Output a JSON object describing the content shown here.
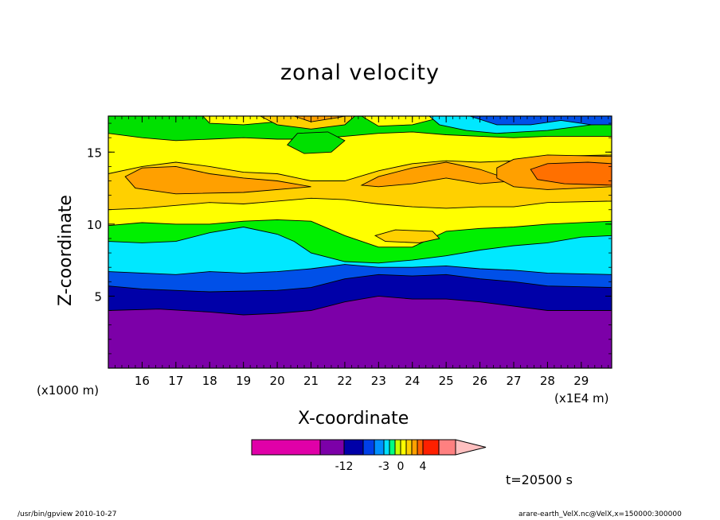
{
  "chart_data": {
    "type": "heatmap",
    "title": "zonal velocity",
    "xlabel": "X-coordinate",
    "ylabel": "Z-coordinate",
    "x_unit": "(x1E4 m)",
    "y_unit": "(x1000 m)",
    "x_ticks": [
      16,
      17,
      18,
      19,
      20,
      21,
      22,
      23,
      24,
      25,
      26,
      27,
      28,
      29
    ],
    "y_ticks": [
      5,
      10,
      15
    ],
    "xlim": [
      15.0,
      29.9
    ],
    "ylim": [
      0,
      17.5
    ],
    "colorbar_tick_labels": [
      {
        "label": "-12",
        "value": -12
      },
      {
        "label": "-3",
        "value": -3
      },
      {
        "label": "0",
        "value": 0
      },
      {
        "label": "4",
        "value": 4
      }
    ],
    "colorbar_colors": [
      "#e000a8",
      "#7c00a8",
      "#0000a8",
      "#0040e8",
      "#0090ff",
      "#00e0ff",
      "#00ff80",
      "#c8ff00",
      "#ffff00",
      "#ffd000",
      "#ffa000",
      "#ff6000",
      "#ff2000",
      "#ff8080",
      "#ffc0c0"
    ],
    "bands": [
      {
        "color": "#7c00a8",
        "upper": [
          [
            15.0,
            4.0
          ],
          [
            16.5,
            4.1
          ],
          [
            18,
            3.9
          ],
          [
            19,
            3.7
          ],
          [
            20,
            3.8
          ],
          [
            21,
            4.0
          ],
          [
            22,
            4.6
          ],
          [
            23,
            5.0
          ],
          [
            24,
            4.8
          ],
          [
            25,
            4.8
          ],
          [
            26,
            4.6
          ],
          [
            27,
            4.3
          ],
          [
            28,
            4.0
          ],
          [
            29.9,
            4.0
          ]
        ]
      },
      {
        "color": "#0000a8",
        "upper": [
          [
            15.0,
            5.7
          ],
          [
            16,
            5.5
          ],
          [
            18,
            5.3
          ],
          [
            20,
            5.4
          ],
          [
            21,
            5.6
          ],
          [
            22,
            6.2
          ],
          [
            23,
            6.5
          ],
          [
            24,
            6.4
          ],
          [
            25,
            6.5
          ],
          [
            26,
            6.2
          ],
          [
            27,
            6.0
          ],
          [
            28,
            5.7
          ],
          [
            29.9,
            5.6
          ]
        ]
      },
      {
        "color": "#0050e8",
        "upper": [
          [
            15.0,
            6.7
          ],
          [
            16,
            6.6
          ],
          [
            17,
            6.5
          ],
          [
            18,
            6.7
          ],
          [
            19,
            6.6
          ],
          [
            20,
            6.7
          ],
          [
            21,
            6.9
          ],
          [
            22,
            7.2
          ],
          [
            23,
            7.0
          ],
          [
            24,
            7.0
          ],
          [
            25,
            7.1
          ],
          [
            26,
            6.9
          ],
          [
            27,
            6.8
          ],
          [
            28,
            6.6
          ],
          [
            29.9,
            6.5
          ]
        ]
      },
      {
        "color": "#00e8ff",
        "upper": [
          [
            15.0,
            8.8
          ],
          [
            16,
            8.7
          ],
          [
            17,
            8.8
          ],
          [
            18,
            9.4
          ],
          [
            19,
            9.8
          ],
          [
            20,
            9.3
          ],
          [
            20.5,
            8.8
          ],
          [
            21,
            8.0
          ],
          [
            22,
            7.4
          ],
          [
            23,
            7.3
          ],
          [
            24,
            7.5
          ],
          [
            25,
            7.8
          ],
          [
            26,
            8.2
          ],
          [
            27,
            8.5
          ],
          [
            28,
            8.7
          ],
          [
            29,
            9.1
          ],
          [
            29.9,
            9.2
          ]
        ]
      },
      {
        "color": "#00f000",
        "upper": [
          [
            15.0,
            9.9
          ],
          [
            16,
            10.1
          ],
          [
            17,
            10.0
          ],
          [
            18,
            10.0
          ],
          [
            19,
            10.2
          ],
          [
            20,
            10.3
          ],
          [
            21,
            10.2
          ],
          [
            22,
            9.2
          ],
          [
            23,
            8.4
          ],
          [
            24,
            8.4
          ],
          [
            25,
            9.5
          ],
          [
            26,
            9.7
          ],
          [
            27,
            9.8
          ],
          [
            28,
            10.0
          ],
          [
            29.9,
            10.2
          ]
        ]
      },
      {
        "color": "#ffff00",
        "upper": [
          [
            15.0,
            11.0
          ],
          [
            16,
            11.1
          ],
          [
            17,
            11.3
          ],
          [
            18,
            11.5
          ],
          [
            19,
            11.4
          ],
          [
            20,
            11.6
          ],
          [
            21,
            11.8
          ],
          [
            22,
            11.7
          ],
          [
            23,
            11.4
          ],
          [
            24,
            11.2
          ],
          [
            25,
            11.1
          ],
          [
            26,
            11.2
          ],
          [
            27,
            11.2
          ],
          [
            28,
            11.5
          ],
          [
            29.9,
            11.6
          ]
        ]
      },
      {
        "color": "#ffd000",
        "upper": [
          [
            15.0,
            13.5
          ],
          [
            16,
            14.0
          ],
          [
            17,
            14.3
          ],
          [
            18,
            14.0
          ],
          [
            19,
            13.6
          ],
          [
            20,
            13.5
          ],
          [
            21,
            13.0
          ],
          [
            22,
            13.0
          ],
          [
            23,
            13.7
          ],
          [
            24,
            14.2
          ],
          [
            25,
            14.4
          ],
          [
            26,
            14.3
          ],
          [
            27,
            14.4
          ],
          [
            28,
            14.7
          ],
          [
            29.9,
            14.8
          ]
        ]
      },
      {
        "color": "#ffff00",
        "upper": [
          [
            15.0,
            16.3
          ],
          [
            16,
            16.0
          ],
          [
            17,
            15.8
          ],
          [
            18,
            15.9
          ],
          [
            19,
            16.0
          ],
          [
            20,
            15.9
          ],
          [
            21,
            15.9
          ],
          [
            22,
            16.1
          ],
          [
            23,
            16.3
          ],
          [
            24,
            16.4
          ],
          [
            25,
            16.2
          ],
          [
            26,
            16.1
          ],
          [
            27,
            16.0
          ],
          [
            28,
            16.1
          ],
          [
            29.9,
            16.1
          ]
        ]
      },
      {
        "color": "#00e000",
        "upper": [
          [
            15.0,
            17.5
          ],
          [
            29.9,
            17.5
          ]
        ]
      }
    ],
    "patches": [
      {
        "color": "#ffff00",
        "points": [
          [
            17.8,
            17.5
          ],
          [
            18,
            17.0
          ],
          [
            19,
            16.9
          ],
          [
            20,
            17.1
          ],
          [
            21,
            17.5
          ]
        ]
      },
      {
        "color": "#ffff00",
        "points": [
          [
            22.5,
            17.5
          ],
          [
            23,
            16.8
          ],
          [
            24,
            16.9
          ],
          [
            25,
            17.5
          ]
        ]
      },
      {
        "color": "#ffd000",
        "points": [
          [
            19.5,
            17.5
          ],
          [
            20,
            16.9
          ],
          [
            21,
            16.6
          ],
          [
            22,
            16.9
          ],
          [
            22.3,
            17.5
          ]
        ]
      },
      {
        "color": "#ffa000",
        "points": [
          [
            20.5,
            17.5
          ],
          [
            21,
            17.1
          ],
          [
            21.8,
            17.4
          ],
          [
            22,
            17.5
          ]
        ]
      },
      {
        "color": "#ffa000",
        "points": [
          [
            15.5,
            13.3
          ],
          [
            16,
            13.9
          ],
          [
            17,
            14.0
          ],
          [
            18,
            13.5
          ],
          [
            19,
            13.2
          ],
          [
            20,
            13.0
          ],
          [
            21,
            12.6
          ],
          [
            19,
            12.2
          ],
          [
            17,
            12.1
          ],
          [
            15.8,
            12.5
          ]
        ]
      },
      {
        "color": "#ffa000",
        "points": [
          [
            22.5,
            12.7
          ],
          [
            23,
            13.3
          ],
          [
            24,
            13.9
          ],
          [
            25,
            14.3
          ],
          [
            26,
            13.8
          ],
          [
            27,
            13.0
          ],
          [
            26,
            12.8
          ],
          [
            25,
            13.2
          ],
          [
            24,
            12.8
          ],
          [
            23,
            12.6
          ]
        ]
      },
      {
        "color": "#ffa000",
        "points": [
          [
            26.5,
            13.9
          ],
          [
            27,
            14.5
          ],
          [
            28,
            14.8
          ],
          [
            29.9,
            14.7
          ],
          [
            29.9,
            12.6
          ],
          [
            28,
            12.4
          ],
          [
            27,
            12.6
          ],
          [
            26.5,
            13.2
          ]
        ]
      },
      {
        "color": "#ff7000",
        "points": [
          [
            27.5,
            13.8
          ],
          [
            28,
            14.2
          ],
          [
            29.2,
            14.3
          ],
          [
            29.9,
            14.2
          ],
          [
            29.9,
            12.7
          ],
          [
            28.5,
            12.8
          ],
          [
            27.7,
            13.1
          ]
        ]
      },
      {
        "color": "#00e000",
        "points": [
          [
            20.3,
            15.5
          ],
          [
            20.6,
            16.3
          ],
          [
            21.5,
            16.4
          ],
          [
            22,
            15.8
          ],
          [
            21.6,
            15.0
          ],
          [
            20.8,
            14.9
          ]
        ]
      },
      {
        "color": "#ffd000",
        "points": [
          [
            22.9,
            9.2
          ],
          [
            23.5,
            9.6
          ],
          [
            24.6,
            9.5
          ],
          [
            24.8,
            9.0
          ],
          [
            24.2,
            8.7
          ],
          [
            23.2,
            8.8
          ]
        ]
      },
      {
        "color": "#00e8ff",
        "points": [
          [
            24.5,
            17.5
          ],
          [
            24.8,
            16.9
          ],
          [
            25.6,
            16.5
          ],
          [
            26.5,
            16.3
          ],
          [
            28,
            16.5
          ],
          [
            29.3,
            16.9
          ],
          [
            29.9,
            17.0
          ],
          [
            29.9,
            17.5
          ]
        ]
      },
      {
        "color": "#0050e8",
        "points": [
          [
            25.7,
            17.5
          ],
          [
            26.5,
            16.9
          ],
          [
            27.5,
            16.9
          ],
          [
            28.4,
            17.2
          ],
          [
            29.3,
            16.9
          ],
          [
            29.9,
            16.9
          ],
          [
            29.9,
            17.5
          ]
        ]
      }
    ]
  },
  "labels": {
    "title": "zonal velocity",
    "xlabel": "X-coordinate",
    "ylabel": "Z-coordinate",
    "y_unit": "(x1000 m)",
    "x_unit": "(x1E4 m)",
    "time": "t=20500 s",
    "footer_left": "/usr/bin/gpview   2010-10-27",
    "footer_right": "arare-earth_VelX.nc@VelX,x=150000:300000"
  }
}
